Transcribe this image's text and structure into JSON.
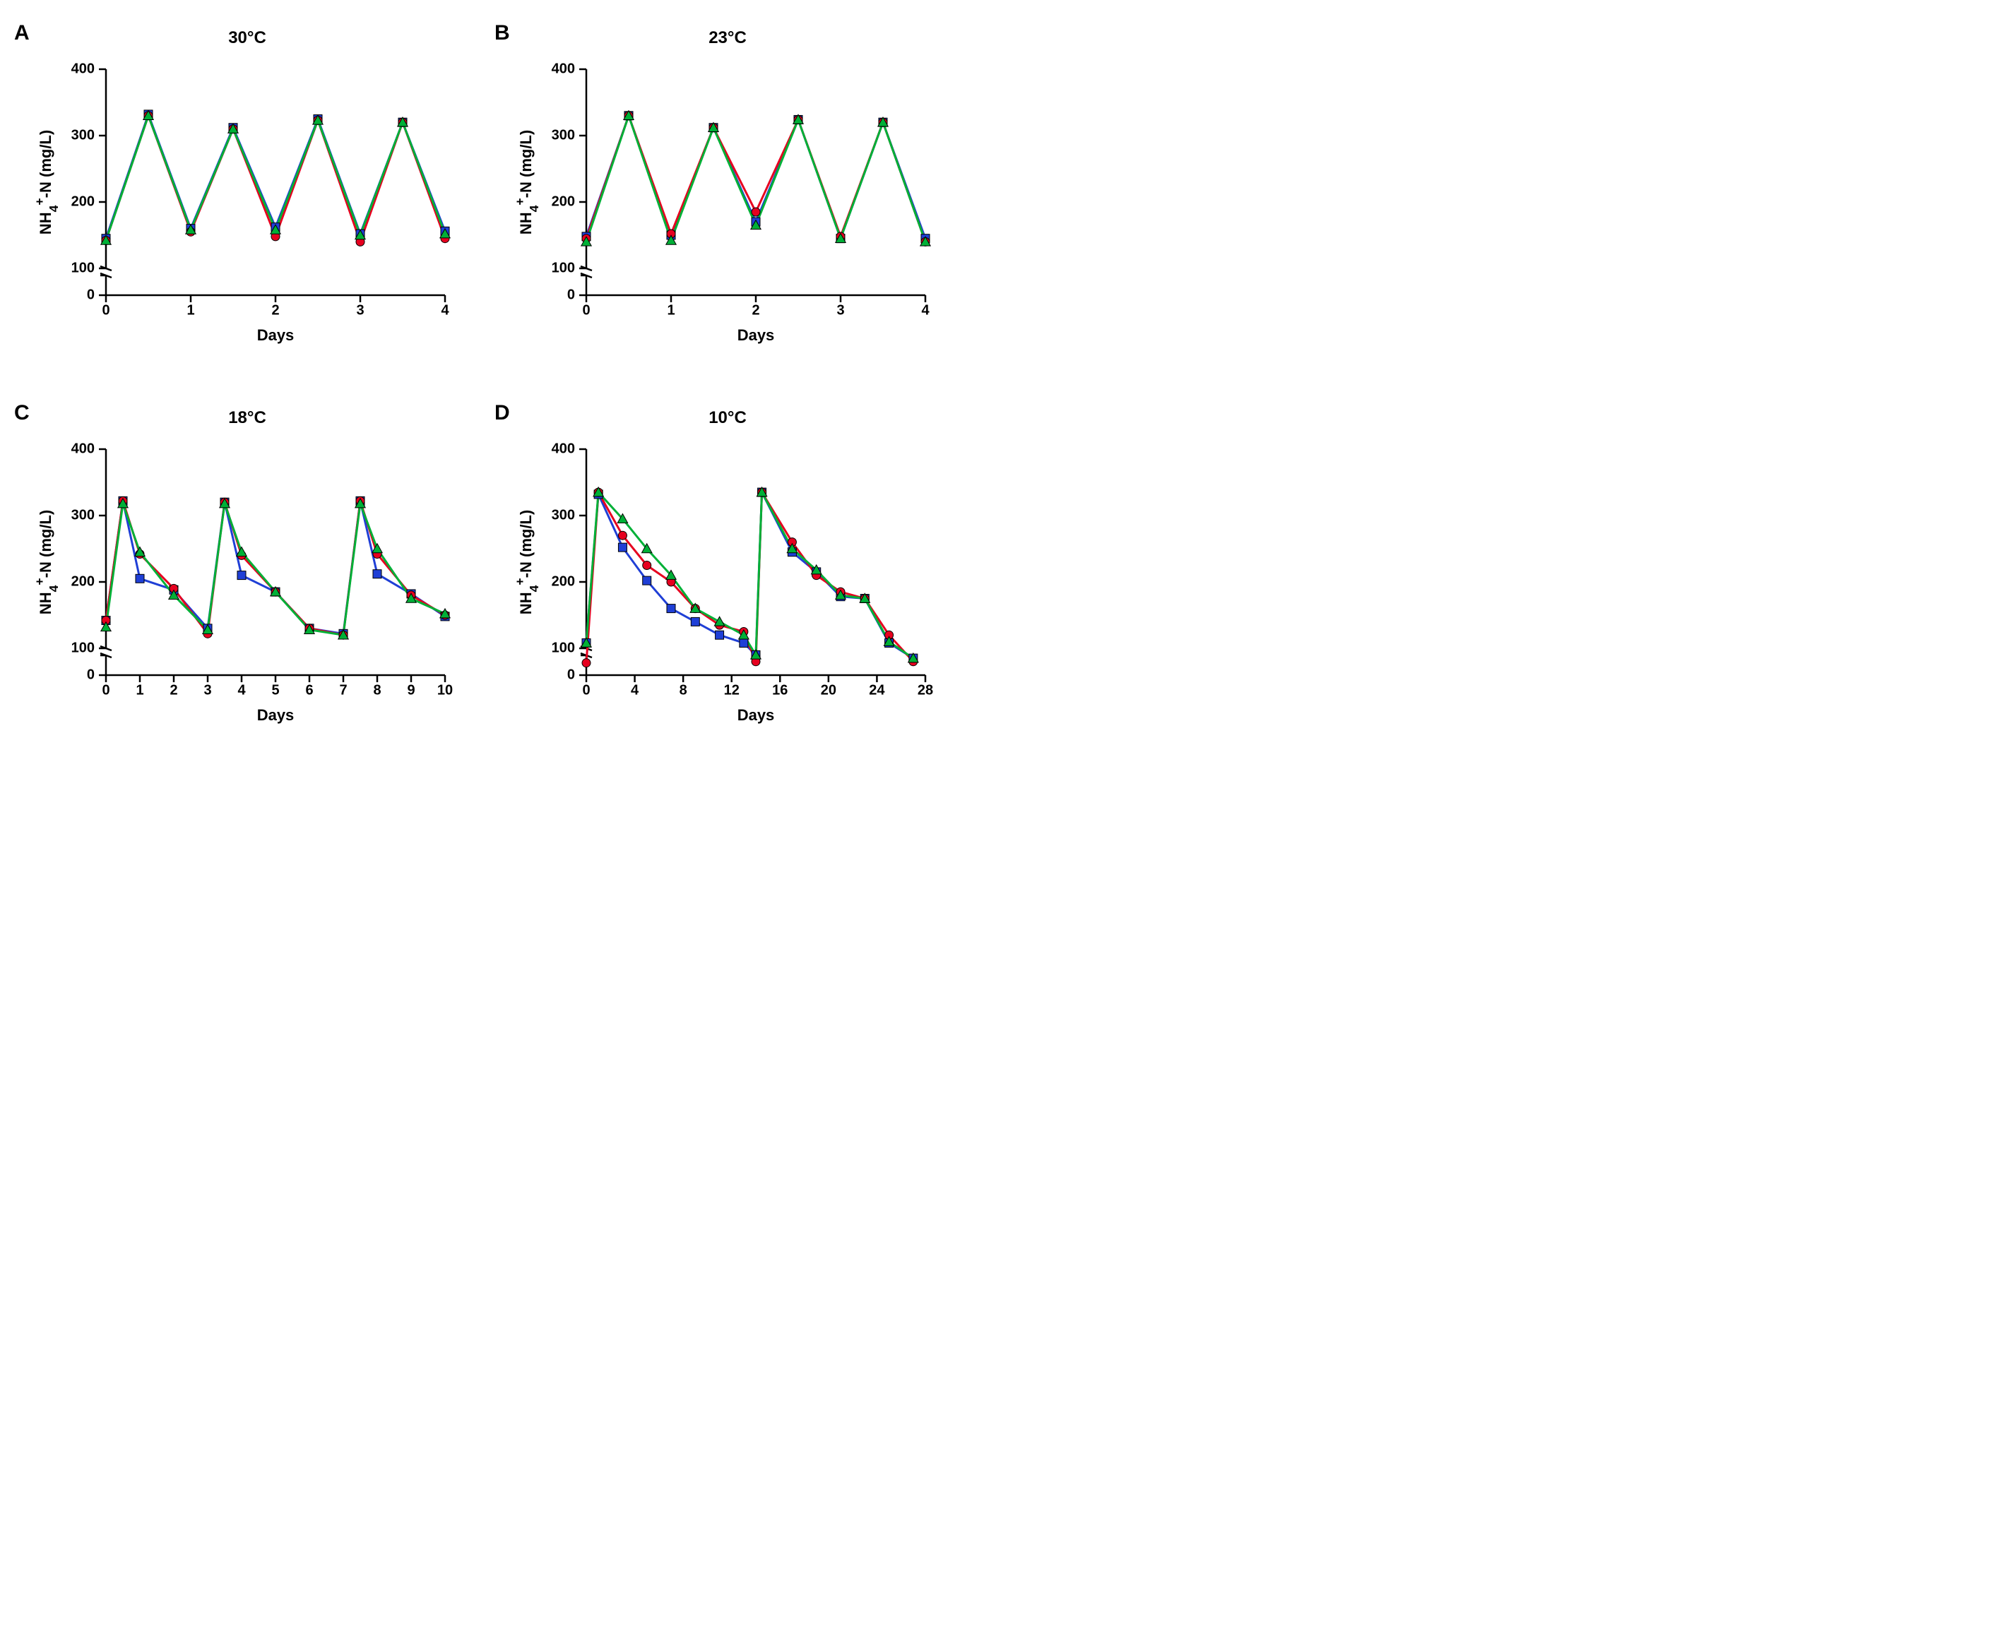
{
  "global": {
    "ylabel_html": "NH<tspan baseline-shift='sub' font-size='0.8em'>4</tspan><tspan baseline-shift='super' font-size='0.8em'>+</tspan>-N (mg/L)",
    "xlabel": "Days",
    "ytick_break_start": 50,
    "ytick_break_end": 100,
    "yticks": [
      0,
      100,
      200,
      300,
      400
    ],
    "ylim": [
      0,
      400
    ],
    "line_width": 3,
    "marker_size": 6,
    "title_fontsize": 24,
    "letter_fontsize": 30,
    "axis_title_fontsize": 22,
    "tick_fontsize": 20,
    "background_color": "#ffffff",
    "axis_color": "#000000",
    "series": [
      {
        "id": "s1",
        "color": "#1f3fd6",
        "marker": "square"
      },
      {
        "id": "s2",
        "color": "#e6001f",
        "marker": "circle"
      },
      {
        "id": "s3",
        "color": "#00b037",
        "marker": "triangle"
      }
    ]
  },
  "panels": {
    "A": {
      "letter": "A",
      "title": "30°C",
      "xlim": [
        0,
        4
      ],
      "xticks": [
        0,
        1,
        2,
        3,
        4
      ],
      "x": [
        0,
        0.5,
        1,
        1.5,
        2,
        2.5,
        3,
        3.5,
        4
      ],
      "series": {
        "s1": [
          145,
          332,
          160,
          312,
          162,
          325,
          152,
          320,
          156
        ],
        "s2": [
          142,
          330,
          155,
          310,
          148,
          323,
          140,
          320,
          145
        ],
        "s3": [
          142,
          330,
          158,
          310,
          158,
          323,
          150,
          320,
          152
        ]
      }
    },
    "B": {
      "letter": "B",
      "title": "23°C",
      "xlim": [
        0,
        4
      ],
      "xticks": [
        0,
        1,
        2,
        3,
        4
      ],
      "x": [
        0,
        0.5,
        1,
        1.5,
        2,
        2.5,
        3,
        3.5,
        4
      ],
      "series": {
        "s1": [
          148,
          330,
          150,
          312,
          170,
          324,
          145,
          320,
          145
        ],
        "s2": [
          145,
          330,
          152,
          312,
          185,
          324,
          148,
          320,
          140
        ],
        "s3": [
          140,
          330,
          142,
          312,
          165,
          324,
          145,
          320,
          140
        ]
      }
    },
    "C": {
      "letter": "C",
      "title": "18°C",
      "xlim": [
        0,
        10
      ],
      "xticks": [
        0,
        1,
        2,
        3,
        4,
        5,
        6,
        7,
        8,
        9,
        10
      ],
      "x": [
        0,
        0.5,
        1,
        2,
        3,
        3.5,
        4,
        5,
        6,
        7,
        7.5,
        8,
        9,
        10
      ],
      "series": {
        "s1": [
          142,
          322,
          205,
          188,
          130,
          320,
          210,
          185,
          130,
          122,
          322,
          212,
          182,
          148
        ],
        "s2": [
          142,
          322,
          242,
          190,
          122,
          320,
          240,
          185,
          130,
          120,
          322,
          242,
          180,
          150
        ],
        "s3": [
          132,
          318,
          245,
          180,
          128,
          318,
          245,
          185,
          128,
          120,
          318,
          250,
          175,
          152
        ]
      }
    },
    "D": {
      "letter": "D",
      "title": "10°C",
      "xlim": [
        0,
        28
      ],
      "xticks": [
        0,
        4,
        8,
        12,
        16,
        20,
        24,
        28
      ],
      "x": [
        0,
        1,
        3,
        5,
        7,
        9,
        11,
        13,
        14,
        14.5,
        17,
        19,
        21,
        23,
        25,
        27
      ],
      "series": {
        "s1": [
          108,
          332,
          252,
          202,
          160,
          140,
          120,
          108,
          90,
          335,
          245,
          215,
          178,
          175,
          108,
          85
        ],
        "s2": [
          78,
          335,
          270,
          225,
          200,
          160,
          135,
          125,
          80,
          335,
          260,
          210,
          185,
          175,
          120,
          80
        ],
        "s3": [
          108,
          335,
          295,
          250,
          210,
          160,
          140,
          120,
          90,
          335,
          250,
          218,
          180,
          175,
          110,
          85
        ]
      }
    }
  }
}
